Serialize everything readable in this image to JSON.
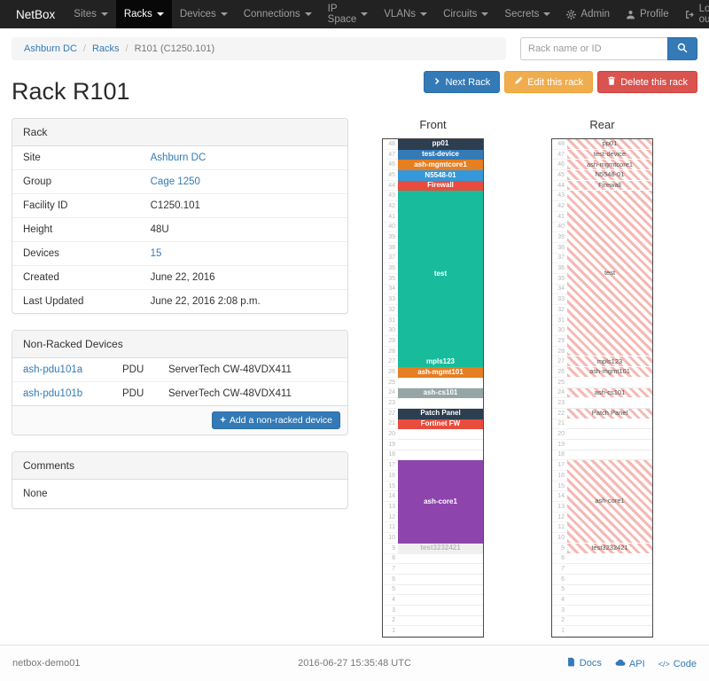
{
  "navbar": {
    "brand": "NetBox",
    "items": [
      {
        "label": "Sites"
      },
      {
        "label": "Racks"
      },
      {
        "label": "Devices"
      },
      {
        "label": "Connections"
      },
      {
        "label": "IP Space"
      },
      {
        "label": "VLANs"
      },
      {
        "label": "Circuits"
      },
      {
        "label": "Secrets"
      }
    ],
    "admin": "Admin",
    "profile": "Profile",
    "logout": "Log out"
  },
  "breadcrumb": {
    "site": "Ashburn DC",
    "section": "Racks",
    "current": "R101 (C1250.101)"
  },
  "search": {
    "placeholder": "Rack name or ID"
  },
  "actions": {
    "next_rack": "Next Rack",
    "edit_rack": "Edit this rack",
    "delete_rack": "Delete this rack"
  },
  "page_title": "Rack R101",
  "rack_panel": {
    "title": "Rack",
    "rows": [
      {
        "label": "Site",
        "value": "Ashburn DC",
        "is_link": true
      },
      {
        "label": "Group",
        "value": "Cage 1250",
        "is_link": true
      },
      {
        "label": "Facility ID",
        "value": "C1250.101",
        "is_link": false
      },
      {
        "label": "Height",
        "value": "48U",
        "is_link": false
      },
      {
        "label": "Devices",
        "value": "15",
        "is_link": true
      },
      {
        "label": "Created",
        "value": "June 22, 2016",
        "is_link": false
      },
      {
        "label": "Last Updated",
        "value": "June 22, 2016 2:08 p.m.",
        "is_link": false
      }
    ]
  },
  "non_racked": {
    "title": "Non-Racked Devices",
    "devices": [
      {
        "name": "ash-pdu101a",
        "type": "PDU",
        "model": "ServerTech CW-48VDX411"
      },
      {
        "name": "ash-pdu101b",
        "type": "PDU",
        "model": "ServerTech CW-48VDX411"
      }
    ],
    "add_button": "Add a non-racked device"
  },
  "comments": {
    "title": "Comments",
    "body": "None"
  },
  "elevations": {
    "front_title": "Front",
    "rear_title": "Rear",
    "total_units": 48,
    "hatch_color": "#f5b8b3",
    "front": [
      {
        "u": 48,
        "size": 1,
        "label": "pp01",
        "color": "#2c3e50",
        "text": "#ffffff"
      },
      {
        "u": 47,
        "size": 1,
        "label": "test-device",
        "color": "#337ab7",
        "text": "#ffffff"
      },
      {
        "u": 46,
        "size": 1,
        "label": "ash-mgmtcore1",
        "color": "#e67e22",
        "text": "#ffffff"
      },
      {
        "u": 45,
        "size": 1,
        "label": "N5548-01",
        "color": "#3498db",
        "text": "#ffffff"
      },
      {
        "u": 44,
        "size": 1,
        "label": "Firewall",
        "color": "#e74c3c",
        "text": "#ffffff"
      },
      {
        "u": 43,
        "size": 16,
        "label": "test",
        "color": "#18bc9c",
        "text": "#ffffff"
      },
      {
        "u": 27,
        "size": 1,
        "label": "mpls123",
        "color": "#18bc9c",
        "text": "#ffffff"
      },
      {
        "u": 26,
        "size": 1,
        "label": "ash-mgmt101",
        "color": "#e67e22",
        "text": "#ffffff"
      },
      {
        "u": 24,
        "size": 1,
        "label": "ash-cs101",
        "color": "#95a5a6",
        "text": "#ffffff"
      },
      {
        "u": 22,
        "size": 1,
        "label": "Patch Panel",
        "color": "#2c3e50",
        "text": "#ffffff"
      },
      {
        "u": 21,
        "size": 1,
        "label": "Fortinet FW",
        "color": "#e74c3c",
        "text": "#ffffff"
      },
      {
        "u": 17,
        "size": 8,
        "label": "ash-core1",
        "color": "#8e44ad",
        "text": "#ffffff"
      },
      {
        "u": 9,
        "size": 1,
        "label": "test3232421",
        "color": "#f0f0f0",
        "text": "#bbbbbb"
      }
    ],
    "rear": [
      {
        "u": 48,
        "size": 1,
        "label": "pp01",
        "hatched": true
      },
      {
        "u": 47,
        "size": 1,
        "label": "test-device",
        "hatched": true
      },
      {
        "u": 46,
        "size": 1,
        "label": "ash-mgmtcore1",
        "hatched": true
      },
      {
        "u": 45,
        "size": 1,
        "label": "N5548-01",
        "hatched": true
      },
      {
        "u": 44,
        "size": 1,
        "label": "Firewall",
        "hatched": true
      },
      {
        "u": 43,
        "size": 16,
        "label": "test",
        "hatched": true
      },
      {
        "u": 27,
        "size": 1,
        "label": "mpls123",
        "hatched": true
      },
      {
        "u": 26,
        "size": 1,
        "label": "ash-mgmt101",
        "hatched": true
      },
      {
        "u": 24,
        "size": 1,
        "label": "ash-cs101",
        "hatched": true
      },
      {
        "u": 22,
        "size": 1,
        "label": "Patch Panel",
        "hatched": true
      },
      {
        "u": 17,
        "size": 8,
        "label": "ash-core1",
        "hatched": true
      },
      {
        "u": 9,
        "size": 1,
        "label": "test3232421",
        "hatched": true
      }
    ]
  },
  "footer": {
    "hostname": "netbox-demo01",
    "timestamp": "2016-06-27 15:35:48 UTC",
    "docs": "Docs",
    "api": "API",
    "code": "Code"
  }
}
